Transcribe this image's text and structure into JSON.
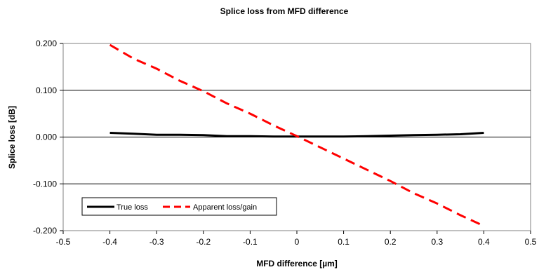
{
  "chart_data": {
    "type": "line",
    "title": "Splice loss from MFD difference",
    "xlabel": "MFD difference [µm]",
    "ylabel": "Splice loss [dB]",
    "xlim": [
      -0.5,
      0.5
    ],
    "ylim": [
      -0.2,
      0.2
    ],
    "xticks": [
      "-0.5",
      "-0.4",
      "-0.3",
      "-0.2",
      "-0.1",
      "0",
      "0.1",
      "0.2",
      "0.3",
      "0.4",
      "0.5"
    ],
    "yticks": [
      "-0.200",
      "-0.100",
      "0.000",
      "0.100",
      "0.200"
    ],
    "grid": "horizontal",
    "legend_position": "bottom-left",
    "x": [
      -0.4,
      -0.35,
      -0.3,
      -0.25,
      -0.2,
      -0.15,
      -0.1,
      -0.05,
      0,
      0.05,
      0.1,
      0.15,
      0.2,
      0.25,
      0.3,
      0.35,
      0.4
    ],
    "series": [
      {
        "name": "True loss",
        "color": "#000000",
        "style": "solid",
        "values": [
          0.009,
          0.007,
          0.005,
          0.005,
          0.004,
          0.002,
          0.002,
          0.001,
          0.001,
          0.001,
          0.001,
          0.002,
          0.003,
          0.004,
          0.005,
          0.006,
          0.009
        ]
      },
      {
        "name": "Apparent loss/gain",
        "color": "#ff0000",
        "style": "dashed",
        "values": [
          0.197,
          0.168,
          0.146,
          0.12,
          0.098,
          0.072,
          0.05,
          0.025,
          0.002,
          -0.022,
          -0.046,
          -0.07,
          -0.094,
          -0.12,
          -0.142,
          -0.167,
          -0.19
        ]
      }
    ]
  }
}
